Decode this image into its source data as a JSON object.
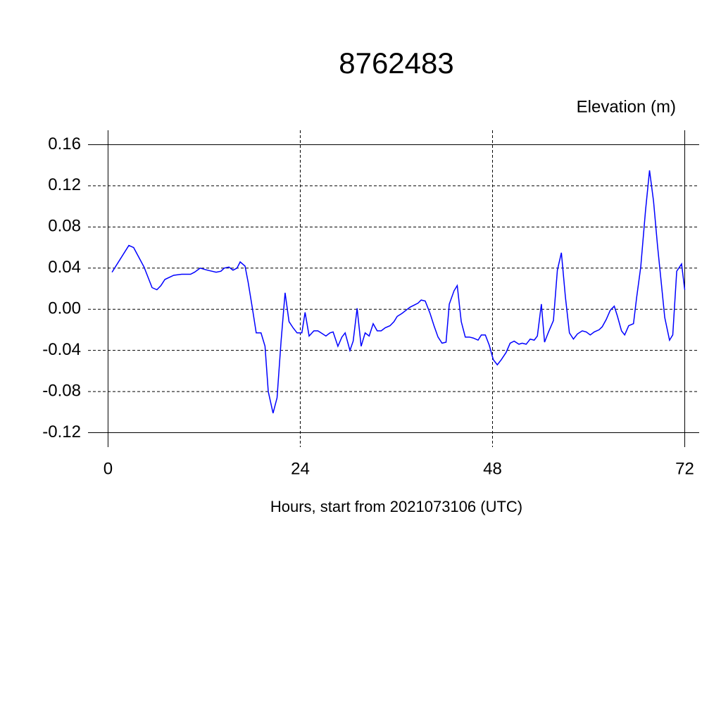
{
  "chart_data": {
    "type": "line",
    "title": "8762483",
    "subtitle": "Elevation (m)",
    "x_label": "Hours, start from 2021073106 (UTC)",
    "xlim": [
      -2.5,
      73.8
    ],
    "xticks": [
      0,
      24,
      48,
      72
    ],
    "ylim": [
      -0.134,
      0.174
    ],
    "yticks": [
      0.16,
      0.12,
      0.08,
      0.04,
      {
        "value": 0,
        "label": "0.00"
      },
      -0.04,
      -0.08,
      -0.12
    ],
    "grid": true,
    "x": [
      0.5,
      2.6,
      3.2,
      4.5,
      5.5,
      6.1,
      6.6,
      7.1,
      8.2,
      9.2,
      9.8,
      10.3,
      10.8,
      11.5,
      12.4,
      13.5,
      14.1,
      14.5,
      15.1,
      15.6,
      16.1,
      16.5,
      17.1,
      17.5,
      18.0,
      18.5,
      19.1,
      19.6,
      20.0,
      20.6,
      21.1,
      21.6,
      22.1,
      22.6,
      23.1,
      23.6,
      24.2,
      24.6,
      25.1,
      25.7,
      26.2,
      26.6,
      27.2,
      27.7,
      28.1,
      28.7,
      29.2,
      29.6,
      30.2,
      30.6,
      31.1,
      31.6,
      32.1,
      32.6,
      33.1,
      33.6,
      34.1,
      34.6,
      35.2,
      35.7,
      36.1,
      36.7,
      37.2,
      37.7,
      38.2,
      38.7,
      39.1,
      39.6,
      40.2,
      40.7,
      41.2,
      41.7,
      42.2,
      42.6,
      43.2,
      43.6,
      44.1,
      44.6,
      45.1,
      45.6,
      46.2,
      46.6,
      47.1,
      47.6,
      48.1,
      48.6,
      49.1,
      49.7,
      50.2,
      50.7,
      51.3,
      51.7,
      52.2,
      52.7,
      53.2,
      53.6,
      54.1,
      54.5,
      55.0,
      55.6,
      56.1,
      56.6,
      57.1,
      57.6,
      58.1,
      58.6,
      59.2,
      59.7,
      60.2,
      60.7,
      61.3,
      61.7,
      62.2,
      62.7,
      63.2,
      63.6,
      64.1,
      64.5,
      65.0,
      65.6,
      66.0,
      66.5,
      67.1,
      67.6,
      68.1,
      68.6,
      69.0,
      69.5,
      70.1,
      70.5,
      71.0,
      71.6,
      72.0
    ],
    "series": [
      {
        "color": "#0000ff",
        "values": [
          0.036,
          0.062,
          0.06,
          0.041,
          0.021,
          0.019,
          0.023,
          0.029,
          0.033,
          0.034,
          0.034,
          0.034,
          0.036,
          0.04,
          0.038,
          0.036,
          0.037,
          0.04,
          0.041,
          0.038,
          0.04,
          0.046,
          0.042,
          0.026,
          0.002,
          -0.023,
          -0.023,
          -0.036,
          -0.08,
          -0.101,
          -0.086,
          -0.031,
          0.016,
          -0.012,
          -0.018,
          -0.023,
          -0.023,
          -0.003,
          -0.026,
          -0.021,
          -0.021,
          -0.023,
          -0.026,
          -0.023,
          -0.022,
          -0.036,
          -0.027,
          -0.023,
          -0.04,
          -0.031,
          0.001,
          -0.036,
          -0.023,
          -0.026,
          -0.014,
          -0.021,
          -0.021,
          -0.018,
          -0.016,
          -0.012,
          -0.007,
          -0.004,
          -0.001,
          0.002,
          0.004,
          0.006,
          0.009,
          0.008,
          -0.004,
          -0.016,
          -0.027,
          -0.033,
          -0.032,
          0.005,
          0.018,
          0.023,
          -0.012,
          -0.027,
          -0.027,
          -0.028,
          -0.03,
          -0.025,
          -0.025,
          -0.035,
          -0.049,
          -0.054,
          -0.049,
          -0.042,
          -0.033,
          -0.031,
          -0.034,
          -0.033,
          -0.034,
          -0.029,
          -0.03,
          -0.026,
          0.005,
          -0.032,
          -0.022,
          -0.011,
          0.038,
          0.055,
          0.012,
          -0.023,
          -0.029,
          -0.024,
          -0.021,
          -0.022,
          -0.025,
          -0.022,
          -0.02,
          -0.017,
          -0.01,
          -0.001,
          0.003,
          -0.007,
          -0.021,
          -0.025,
          -0.016,
          -0.014,
          0.012,
          0.041,
          0.096,
          0.135,
          0.105,
          0.062,
          0.031,
          -0.008,
          -0.03,
          -0.025,
          0.037,
          0.044,
          0.019
        ]
      }
    ]
  }
}
